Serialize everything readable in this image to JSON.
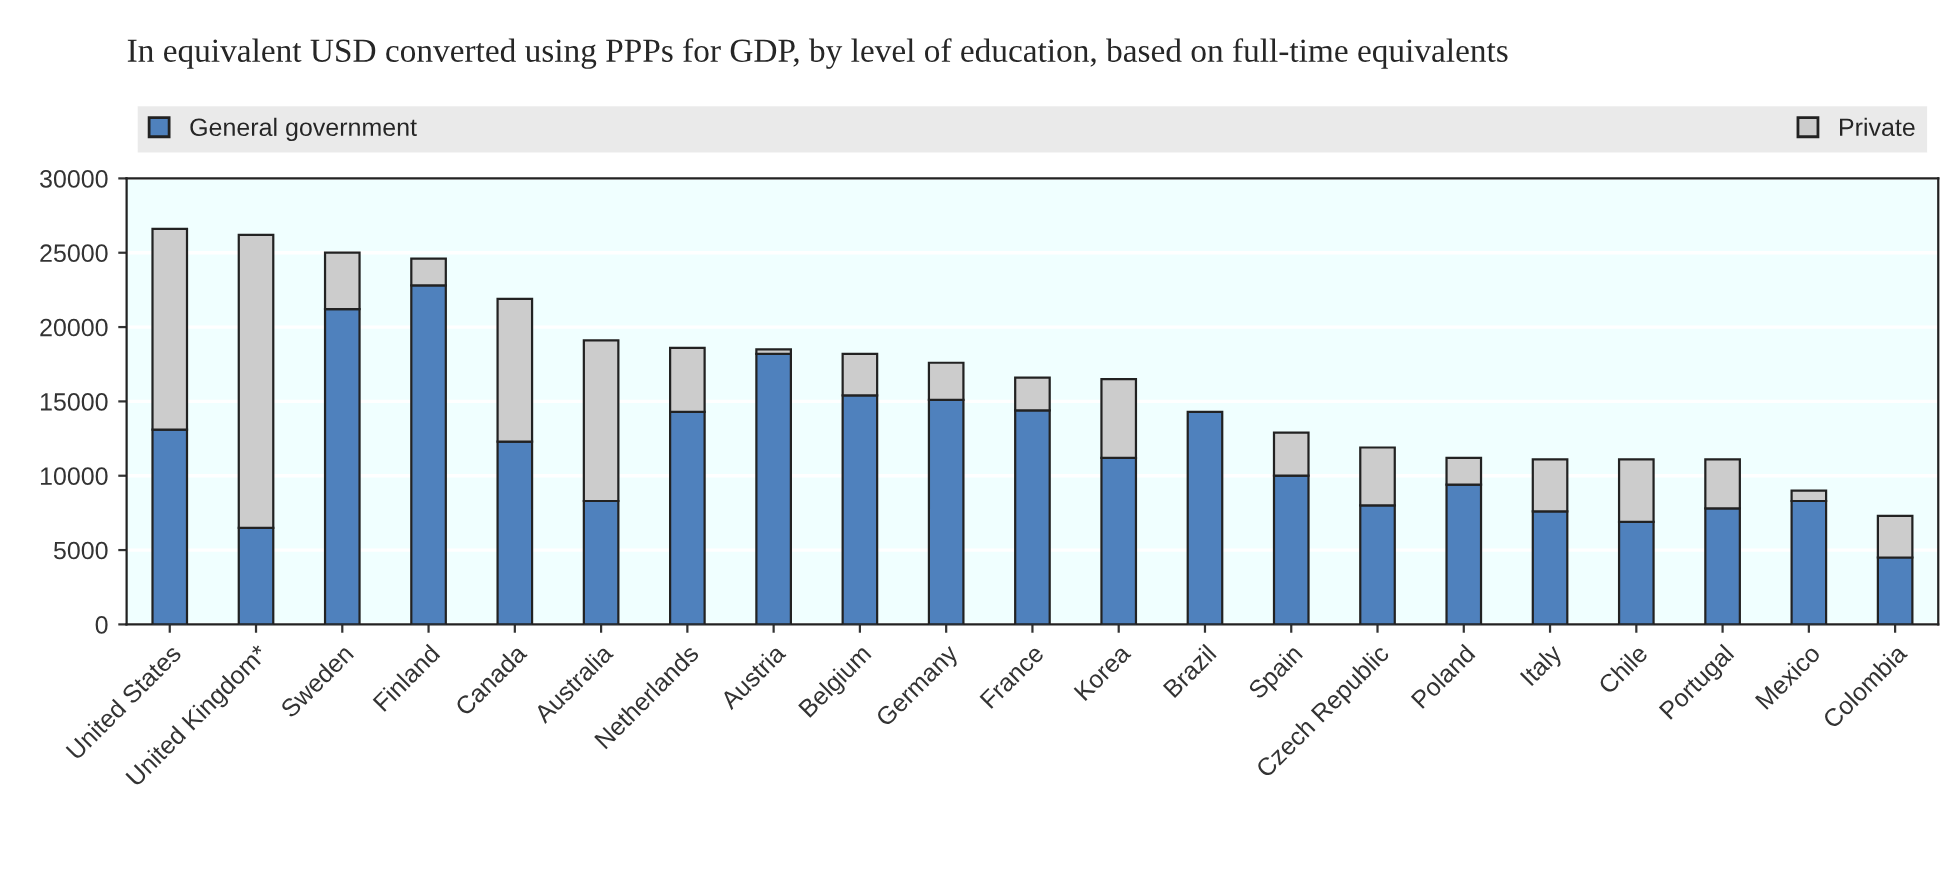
{
  "chart_data": {
    "type": "bar",
    "stacked": true,
    "title": "In equivalent USD converted using PPPs for GDP, by level of education, based on full-time equivalents",
    "categories": [
      "United States",
      "United Kingdom*",
      "Sweden",
      "Finland",
      "Canada",
      "Australia",
      "Netherlands",
      "Austria",
      "Belgium",
      "Germany",
      "France",
      "Korea",
      "Brazil",
      "Spain",
      "Czech Republic",
      "Poland",
      "Italy",
      "Chile",
      "Portugal",
      "Mexico",
      "Colombia"
    ],
    "series": [
      {
        "name": "General government",
        "color": "#4f81bd",
        "values": [
          13100,
          6500,
          21200,
          22800,
          12300,
          8300,
          14300,
          18200,
          15400,
          15100,
          14400,
          11200,
          14300,
          10000,
          8000,
          9400,
          7600,
          6900,
          7800,
          8300,
          4500
        ]
      },
      {
        "name": "Private",
        "color": "#cccccc",
        "values": [
          13500,
          19700,
          3800,
          1800,
          9600,
          10800,
          4300,
          300,
          2800,
          2500,
          2200,
          5300,
          null,
          2900,
          3900,
          1800,
          3500,
          4200,
          3300,
          700,
          2800
        ]
      }
    ],
    "ylim": [
      0,
      30000
    ],
    "yticks": [
      0,
      5000,
      10000,
      15000,
      20000,
      25000,
      30000
    ],
    "grid": "y",
    "legend": "top"
  }
}
